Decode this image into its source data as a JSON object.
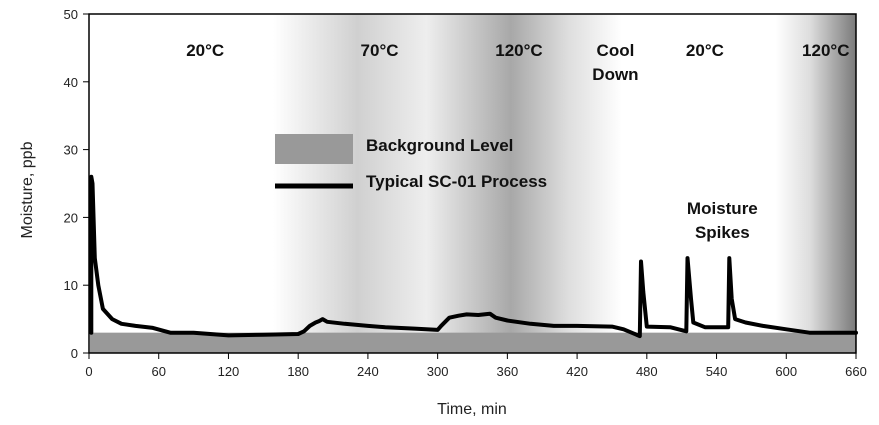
{
  "chart_data": {
    "type": "line",
    "title": "",
    "xlabel": "Time, min",
    "ylabel": "Moisture, ppb",
    "xlim": [
      0,
      660
    ],
    "ylim": [
      0,
      50
    ],
    "grid": false,
    "x_ticks": [
      "0",
      "60",
      "120",
      "180",
      "240",
      "300",
      "360",
      "420",
      "480",
      "540",
      "600",
      "660"
    ],
    "y_ticks": [
      "0",
      "10",
      "20",
      "30",
      "40",
      "50"
    ],
    "legend_position": "middle-left",
    "legend": [
      {
        "name": "Background Level",
        "style": "band",
        "color": "#999999"
      },
      {
        "name": "Typical SC-01 Process",
        "style": "line",
        "color": "#000000"
      }
    ],
    "background_level": {
      "name": "Background Level",
      "ymin": 0,
      "ymax": 3
    },
    "temperature_regions": [
      {
        "label": "20°C",
        "label2": "",
        "x": 100
      },
      {
        "label": "70°C",
        "label2": "",
        "x": 250
      },
      {
        "label": "120°C",
        "label2": "",
        "x": 370
      },
      {
        "label": "Cool",
        "label2": "Down",
        "x": 453
      },
      {
        "label": "20°C",
        "label2": "",
        "x": 530
      },
      {
        "label": "120°C",
        "label2": "",
        "x": 634
      }
    ],
    "annotations": [
      {
        "line1": "Moisture",
        "line2": "Spikes",
        "x": 545,
        "y": 20.5
      }
    ],
    "series": [
      {
        "name": "Typical SC-01 Process",
        "x": [
          2,
          2,
          3,
          5,
          8,
          12,
          20,
          28,
          40,
          55,
          70,
          90,
          120,
          150,
          180,
          185,
          190,
          195,
          198,
          201,
          205,
          220,
          240,
          255,
          280,
          300,
          303,
          310,
          318,
          325,
          335,
          345,
          350,
          360,
          380,
          400,
          420,
          450,
          460,
          474,
          475,
          477,
          480,
          500,
          514,
          515,
          518,
          520,
          530,
          545,
          550,
          551,
          553,
          556,
          565,
          580,
          600,
          620,
          640,
          660
        ],
        "y": [
          3,
          26,
          25,
          14,
          10,
          6.5,
          5,
          4.3,
          4,
          3.7,
          3,
          3,
          2.6,
          2.7,
          2.8,
          3.2,
          4,
          4.5,
          4.7,
          5,
          4.6,
          4.3,
          4,
          3.8,
          3.6,
          3.4,
          4,
          5.2,
          5.5,
          5.7,
          5.6,
          5.8,
          5.2,
          4.8,
          4.3,
          4,
          4,
          3.9,
          3.5,
          2.5,
          13.5,
          9,
          3.9,
          3.8,
          3.2,
          14,
          8,
          4.5,
          3.8,
          3.8,
          3.8,
          14,
          8,
          5,
          4.5,
          4,
          3.5,
          3,
          3,
          3
        ]
      }
    ]
  }
}
